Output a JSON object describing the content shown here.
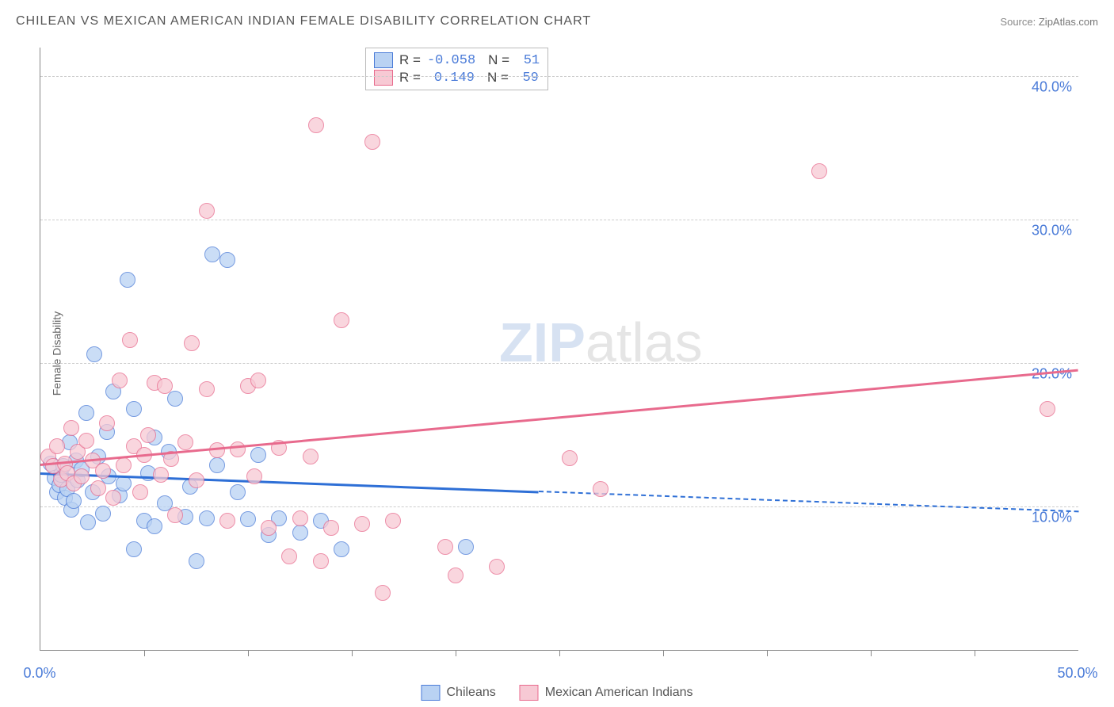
{
  "title": "CHILEAN VS MEXICAN AMERICAN INDIAN FEMALE DISABILITY CORRELATION CHART",
  "source_label": "Source:",
  "source_name": "ZipAtlas.com",
  "ylabel": "Female Disability",
  "watermark_zip": "ZIP",
  "watermark_atlas": "atlas",
  "chart": {
    "type": "scatter",
    "xlim": [
      0,
      50
    ],
    "ylim": [
      0,
      42
    ],
    "yticks": [
      {
        "v": 10,
        "label": "10.0%"
      },
      {
        "v": 20,
        "label": "20.0%"
      },
      {
        "v": 30,
        "label": "30.0%"
      },
      {
        "v": 40,
        "label": "40.0%"
      }
    ],
    "xticks_minor": [
      5,
      10,
      15,
      20,
      25,
      30,
      35,
      40,
      45
    ],
    "xtick_labels": [
      {
        "v": 0,
        "label": "0.0%"
      },
      {
        "v": 50,
        "label": "50.0%"
      }
    ],
    "series": [
      {
        "name": "Chileans",
        "fill": "#b9d2f3",
        "stroke": "#4a7bd8",
        "line_color": "#2e6fd6",
        "r": "-0.058",
        "n": "51",
        "trend": {
          "x1": 0,
          "y1": 12.4,
          "x2_solid": 24,
          "y2_solid": 11.1,
          "x2": 50,
          "y2": 9.7
        },
        "points": [
          [
            0.5,
            13
          ],
          [
            0.7,
            12
          ],
          [
            0.8,
            11
          ],
          [
            0.9,
            11.5
          ],
          [
            1.0,
            12.2
          ],
          [
            1.1,
            12.8
          ],
          [
            1.2,
            10.6
          ],
          [
            1.3,
            11.2
          ],
          [
            1.4,
            14.5
          ],
          [
            1.5,
            9.8
          ],
          [
            1.6,
            10.4
          ],
          [
            1.7,
            13.2
          ],
          [
            1.8,
            11.8
          ],
          [
            2.0,
            12.6
          ],
          [
            2.2,
            16.5
          ],
          [
            2.3,
            8.9
          ],
          [
            2.5,
            11.0
          ],
          [
            2.6,
            20.6
          ],
          [
            2.8,
            13.5
          ],
          [
            3.0,
            9.5
          ],
          [
            3.2,
            15.2
          ],
          [
            3.3,
            12.1
          ],
          [
            3.5,
            18.0
          ],
          [
            3.8,
            10.8
          ],
          [
            4.0,
            11.6
          ],
          [
            4.2,
            25.8
          ],
          [
            4.5,
            7.0
          ],
          [
            4.5,
            16.8
          ],
          [
            5.0,
            9.0
          ],
          [
            5.2,
            12.3
          ],
          [
            5.5,
            14.8
          ],
          [
            5.5,
            8.6
          ],
          [
            6.0,
            10.2
          ],
          [
            6.2,
            13.8
          ],
          [
            6.5,
            17.5
          ],
          [
            7.0,
            9.3
          ],
          [
            7.2,
            11.4
          ],
          [
            7.5,
            6.2
          ],
          [
            8.0,
            9.2
          ],
          [
            8.3,
            27.6
          ],
          [
            8.5,
            12.9
          ],
          [
            9.0,
            27.2
          ],
          [
            9.5,
            11.0
          ],
          [
            10.0,
            9.1
          ],
          [
            10.5,
            13.6
          ],
          [
            11.0,
            8.0
          ],
          [
            11.5,
            9.2
          ],
          [
            12.5,
            8.2
          ],
          [
            13.5,
            9.0
          ],
          [
            14.5,
            7.0
          ],
          [
            20.5,
            7.2
          ]
        ]
      },
      {
        "name": "Mexican American Indians",
        "fill": "#f7c9d4",
        "stroke": "#e86a8d",
        "line_color": "#e86a8d",
        "r": "0.149",
        "n": "59",
        "trend": {
          "x1": 0,
          "y1": 13.0,
          "x2_solid": 50,
          "y2_solid": 19.6,
          "x2": 50,
          "y2": 19.6
        },
        "points": [
          [
            0.4,
            13.5
          ],
          [
            0.6,
            12.8
          ],
          [
            0.8,
            14.2
          ],
          [
            1.0,
            11.9
          ],
          [
            1.2,
            13.0
          ],
          [
            1.3,
            12.3
          ],
          [
            1.5,
            15.5
          ],
          [
            1.6,
            11.6
          ],
          [
            1.8,
            13.8
          ],
          [
            2.0,
            12.1
          ],
          [
            2.2,
            14.6
          ],
          [
            2.5,
            13.2
          ],
          [
            2.8,
            11.3
          ],
          [
            3.0,
            12.5
          ],
          [
            3.2,
            15.8
          ],
          [
            3.5,
            10.6
          ],
          [
            3.8,
            18.8
          ],
          [
            4.0,
            12.9
          ],
          [
            4.3,
            21.6
          ],
          [
            4.5,
            14.2
          ],
          [
            4.8,
            11.0
          ],
          [
            5.0,
            13.6
          ],
          [
            5.2,
            15.0
          ],
          [
            5.5,
            18.6
          ],
          [
            5.8,
            12.2
          ],
          [
            6.0,
            18.4
          ],
          [
            6.3,
            13.3
          ],
          [
            6.5,
            9.4
          ],
          [
            7.0,
            14.5
          ],
          [
            7.3,
            21.4
          ],
          [
            7.5,
            11.8
          ],
          [
            8.0,
            30.6
          ],
          [
            8.0,
            18.2
          ],
          [
            8.5,
            13.9
          ],
          [
            9.0,
            9.0
          ],
          [
            9.5,
            14.0
          ],
          [
            10.0,
            18.4
          ],
          [
            10.3,
            12.1
          ],
          [
            10.5,
            18.8
          ],
          [
            11.0,
            8.5
          ],
          [
            11.5,
            14.1
          ],
          [
            12.0,
            6.5
          ],
          [
            12.5,
            9.2
          ],
          [
            13.0,
            13.5
          ],
          [
            13.3,
            36.6
          ],
          [
            13.5,
            6.2
          ],
          [
            14.0,
            8.5
          ],
          [
            14.5,
            23.0
          ],
          [
            15.5,
            8.8
          ],
          [
            16.0,
            35.4
          ],
          [
            16.5,
            4.0
          ],
          [
            17.0,
            9.0
          ],
          [
            19.5,
            7.2
          ],
          [
            20.0,
            5.2
          ],
          [
            22.0,
            5.8
          ],
          [
            25.5,
            13.4
          ],
          [
            27.0,
            11.2
          ],
          [
            37.5,
            33.4
          ],
          [
            48.5,
            16.8
          ]
        ]
      }
    ]
  },
  "legend": {
    "r_label": "R =",
    "n_label": "N ="
  }
}
